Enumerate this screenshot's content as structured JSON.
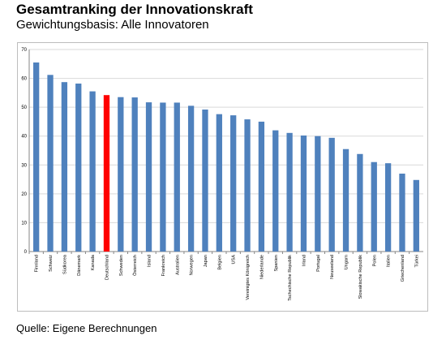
{
  "header": {
    "title": "Gesamtranking der Innovationskraft",
    "subtitle": "Gewichtungsbasis: Alle Innovatoren"
  },
  "footer": {
    "source": "Quelle: Eigene Berechnungen"
  },
  "colors": {
    "bar": "#4f81bd",
    "highlight": "#ff0000",
    "grid": "#d9d9d9",
    "axis": "#868686"
  },
  "chart_data": {
    "type": "bar",
    "title": "",
    "xlabel": "",
    "ylabel": "",
    "ylim": [
      0,
      70
    ],
    "yticks": [
      0,
      10,
      20,
      30,
      40,
      50,
      60,
      70
    ],
    "grid": true,
    "legend": "none",
    "highlight_category": "Deutschland",
    "categories": [
      "Finnland",
      "Schweiz",
      "Südkorea",
      "Dänemark",
      "Kanada",
      "Deutschland",
      "Schweden",
      "Österreich",
      "Island",
      "Frankreich",
      "Australien",
      "Norwegen",
      "Japan",
      "Belgien",
      "USA",
      "Vereinigtes Königreich",
      "Niederlande",
      "Spanien",
      "Tschechische Republik",
      "Irland",
      "Portugal",
      "Neuseeland",
      "Ungarn",
      "Slowakische Republik",
      "Polen",
      "Italien",
      "Griechenland",
      "Türkei"
    ],
    "values": [
      65.5,
      61.2,
      58.7,
      58.2,
      55.5,
      54.2,
      53.5,
      53.4,
      51.7,
      51.6,
      51.6,
      50.5,
      49.2,
      47.6,
      47.2,
      45.8,
      45.0,
      42.0,
      41.1,
      40.2,
      40.0,
      39.4,
      35.5,
      33.8,
      31.0,
      30.6,
      27.0,
      24.8
    ]
  }
}
